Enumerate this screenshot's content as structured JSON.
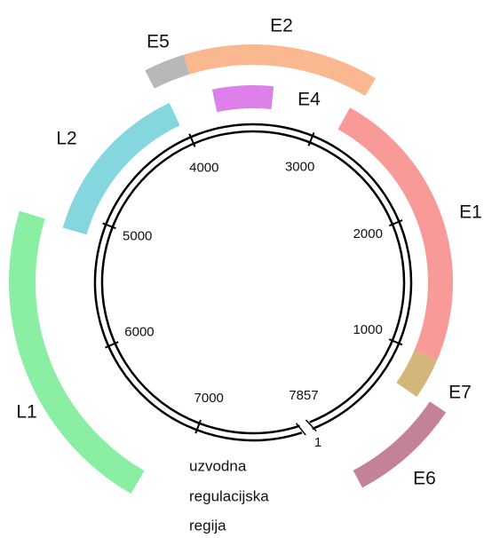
{
  "segments": [
    {
      "label": "E1"
    },
    {
      "label": "E2"
    },
    {
      "label": "E4"
    },
    {
      "label": "E5"
    },
    {
      "label": "E6"
    },
    {
      "label": "E7"
    },
    {
      "label": "L1"
    },
    {
      "label": "L2"
    }
  ],
  "ticks": [
    1,
    1000,
    2000,
    3000,
    4000,
    5000,
    6000,
    7000,
    7857
  ],
  "region_label": [
    "uzvodna",
    "regulacijska",
    "regija"
  ]
}
